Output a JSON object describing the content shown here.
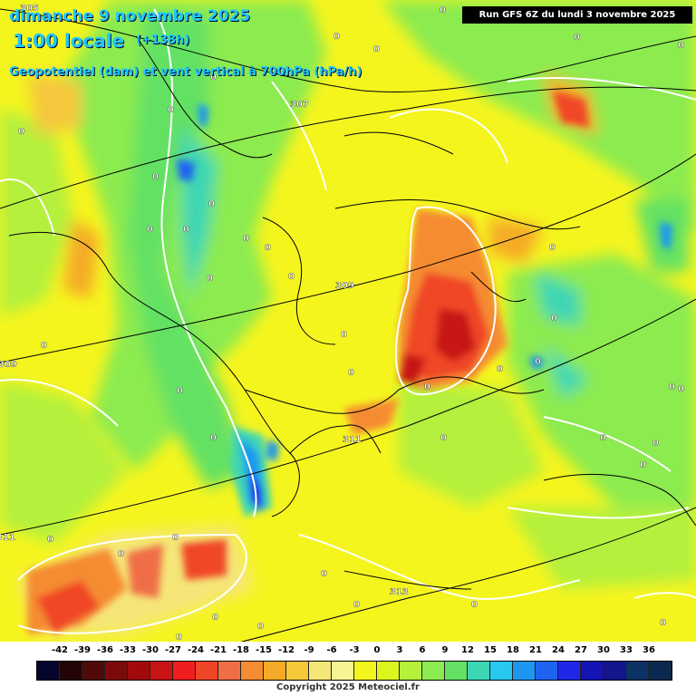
{
  "header": {
    "date_line": "dimanche 9 novembre 2025",
    "time_line": "1:00 locale",
    "lead_time": "(+138h)",
    "variable_line": "Geopotentiel (dam) et vent vertical à 700hPa (hPa/h)",
    "run_info": "Run GFS 6Z du lundi 3 novembre 2025"
  },
  "map": {
    "contour_labels": [
      "305",
      "307",
      "309",
      "309",
      "311",
      "313",
      "311",
      "313"
    ],
    "zero_label": "0",
    "colors": {
      "base_yellow": "#f5f51e",
      "light_green": "#b4f03c",
      "green": "#6ee050",
      "teal": "#3cd6b4",
      "cyan": "#2ab8f0",
      "blue": "#1e64f0",
      "orange": "#ff9628",
      "red": "#f03c1e",
      "darkred": "#b41414",
      "coast": "#000000",
      "isohypse": "#ffffff"
    }
  },
  "legend": {
    "ticks": [
      "-42",
      "-39",
      "-36",
      "-33",
      "-30",
      "-27",
      "-24",
      "-21",
      "-18",
      "-15",
      "-12",
      "-9",
      "-6",
      "-3",
      "0",
      "3",
      "6",
      "9",
      "12",
      "15",
      "18",
      "21",
      "24",
      "27",
      "30",
      "33",
      "36"
    ],
    "colors": [
      "#05052d",
      "#230505",
      "#500a0a",
      "#7d0a0a",
      "#a00a0a",
      "#c81414",
      "#f01e1e",
      "#f04628",
      "#f06e46",
      "#f58c32",
      "#f5aa28",
      "#f5c83c",
      "#f5e678",
      "#f5f596",
      "#f5f51e",
      "#dcf51e",
      "#b4f03c",
      "#8ceb50",
      "#64e164",
      "#3cd6b4",
      "#28c8f0",
      "#1e96f0",
      "#1e64f0",
      "#1e28e6",
      "#1414b4",
      "#14148c",
      "#0a3264",
      "#0a2850"
    ],
    "copyright": "Copyright 2025 Meteociel.fr"
  }
}
